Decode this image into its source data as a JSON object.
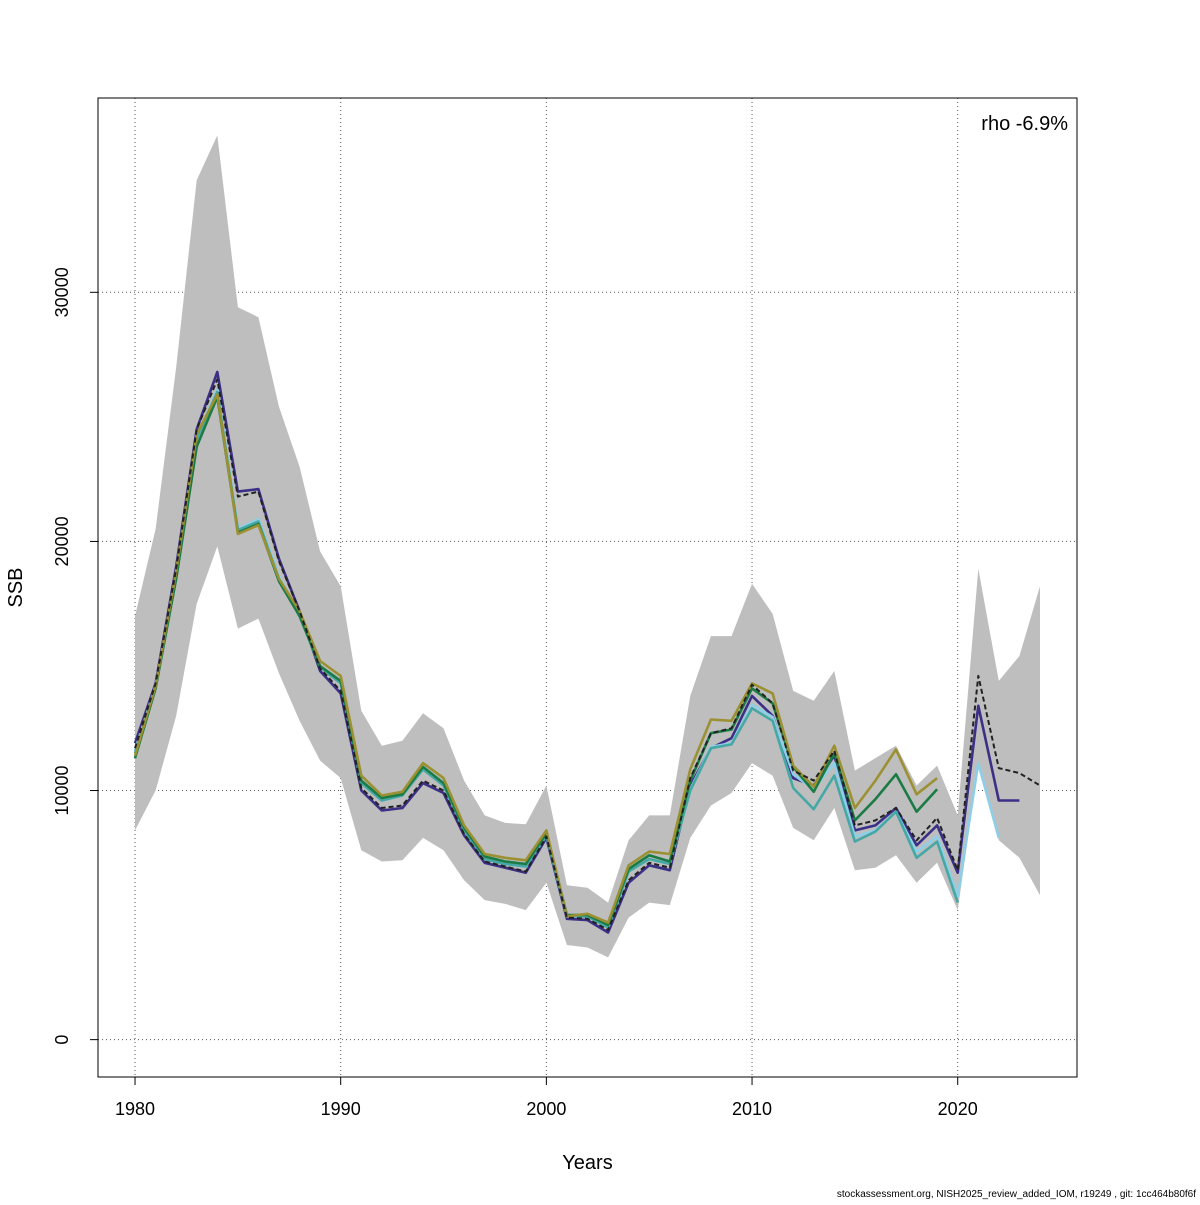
{
  "chart_data": {
    "type": "line",
    "title": "",
    "xlabel": "Years",
    "ylabel": "SSB",
    "xlim": [
      1978.2,
      2025.8
    ],
    "ylim": [
      -1500,
      37800
    ],
    "x_ticks": [
      1980,
      1990,
      2000,
      2010,
      2020
    ],
    "y_ticks": [
      0,
      10000,
      20000,
      30000
    ],
    "grid": true,
    "annotation": "rho -6.9%",
    "years": [
      1980,
      1981,
      1982,
      1983,
      1984,
      1985,
      1986,
      1987,
      1988,
      1989,
      1990,
      1991,
      1992,
      1993,
      1994,
      1995,
      1996,
      1997,
      1998,
      1999,
      2000,
      2001,
      2002,
      2003,
      2004,
      2005,
      2006,
      2007,
      2008,
      2009,
      2010,
      2011,
      2012,
      2013,
      2014,
      2015,
      2016,
      2017,
      2018,
      2019,
      2020,
      2021,
      2022,
      2023,
      2024
    ],
    "confidence_band": {
      "color": "#bebebe",
      "upper": [
        17000,
        20500,
        27000,
        34500,
        36300,
        29400,
        29000,
        25400,
        23000,
        19600,
        18200,
        13200,
        11800,
        12000,
        13100,
        12500,
        10400,
        9000,
        8700,
        8650,
        10200,
        6200,
        6100,
        5500,
        8000,
        9000,
        9000,
        13800,
        16200,
        16200,
        18300,
        17100,
        14000,
        13600,
        14800,
        10800,
        11300,
        11800,
        10200,
        11000,
        9000,
        18900,
        14400,
        15400,
        18200
      ],
      "lower": [
        8400,
        10000,
        13000,
        17500,
        19800,
        16500,
        16900,
        14700,
        12800,
        11200,
        10500,
        7600,
        7150,
        7200,
        8100,
        7600,
        6400,
        5600,
        5450,
        5200,
        6300,
        3800,
        3700,
        3300,
        4900,
        5500,
        5400,
        8100,
        9400,
        9900,
        11100,
        10600,
        8500,
        8000,
        9300,
        6800,
        6900,
        7400,
        6300,
        7100,
        5200,
        11000,
        8000,
        7300,
        5800
      ]
    },
    "series": [
      {
        "color": "#3b2f86",
        "values": [
          11900,
          14300,
          19000,
          24500,
          26800,
          22000,
          22100,
          19300,
          17200,
          14800,
          13900,
          10000,
          9200,
          9300,
          10300,
          9900,
          8200,
          7100,
          6900,
          6700,
          8100,
          4850,
          4800,
          4300,
          6300,
          7000,
          6800,
          10200,
          11700,
          12100,
          13800,
          13000,
          10500,
          10200,
          11400,
          8400,
          8600,
          9300,
          7800,
          8600,
          6700,
          13400,
          9600,
          9600,
          null
        ]
      },
      {
        "color": "#8ecfe8",
        "values": [
          11600,
          14200,
          18700,
          24200,
          26100,
          20500,
          20900,
          18600,
          17100,
          15000,
          14300,
          10300,
          9600,
          9800,
          10900,
          10200,
          8400,
          7250,
          7050,
          6950,
          8200,
          4950,
          4950,
          4500,
          6750,
          7250,
          7050,
          10050,
          11750,
          11900,
          13450,
          12950,
          10650,
          10050,
          11100,
          8150,
          8400,
          9150,
          7550,
          8150,
          5750,
          11100,
          8100,
          null,
          null
        ]
      },
      {
        "color": "#46a8a4",
        "values": [
          11500,
          14200,
          18600,
          24100,
          26000,
          20450,
          20800,
          18500,
          17000,
          14950,
          14300,
          10300,
          9600,
          9800,
          10850,
          10200,
          8400,
          7250,
          7050,
          6950,
          8200,
          4950,
          4950,
          4500,
          6750,
          7250,
          7050,
          10000,
          11700,
          11850,
          13300,
          12800,
          10100,
          9250,
          10600,
          7950,
          8350,
          9150,
          7300,
          7950,
          5500,
          null,
          null,
          null,
          null
        ]
      },
      {
        "color": "#1b7b45",
        "values": [
          11300,
          14100,
          18500,
          23800,
          25800,
          20350,
          20700,
          18400,
          17000,
          15000,
          14400,
          10400,
          9700,
          9850,
          10950,
          10300,
          8500,
          7350,
          7150,
          7050,
          8300,
          5000,
          5000,
          4600,
          6850,
          7400,
          7150,
          10400,
          12300,
          12450,
          14100,
          13500,
          10950,
          9950,
          11500,
          8800,
          9650,
          10650,
          9150,
          10050,
          null,
          null,
          null,
          null,
          null
        ]
      },
      {
        "color": "#9c9132",
        "values": [
          11400,
          14200,
          18800,
          24300,
          25900,
          20300,
          20650,
          18500,
          17200,
          15200,
          14600,
          10600,
          9800,
          9950,
          11100,
          10500,
          8600,
          7450,
          7300,
          7200,
          8400,
          4950,
          5050,
          4700,
          7000,
          7550,
          7450,
          10850,
          12850,
          12800,
          14300,
          13900,
          11000,
          10150,
          11800,
          9300,
          10400,
          11650,
          9850,
          10500,
          null,
          null,
          null,
          null,
          null
        ]
      },
      {
        "color": "#222222",
        "dashed": true,
        "values": [
          11700,
          14300,
          18900,
          24500,
          26500,
          21800,
          22000,
          19200,
          17200,
          14900,
          14000,
          10100,
          9300,
          9400,
          10400,
          10000,
          8250,
          7150,
          6950,
          6750,
          8150,
          4900,
          4850,
          4400,
          6400,
          7100,
          6900,
          10500,
          12300,
          12500,
          14250,
          13500,
          10800,
          10400,
          11600,
          8600,
          8800,
          9300,
          8000,
          8900,
          6800,
          14600,
          10900,
          10700,
          10200
        ]
      }
    ]
  },
  "footer": {
    "note": "stockassessment.org, NISH2025_review_added_IOM, r19249 , git: 1cc464b80f6f"
  }
}
